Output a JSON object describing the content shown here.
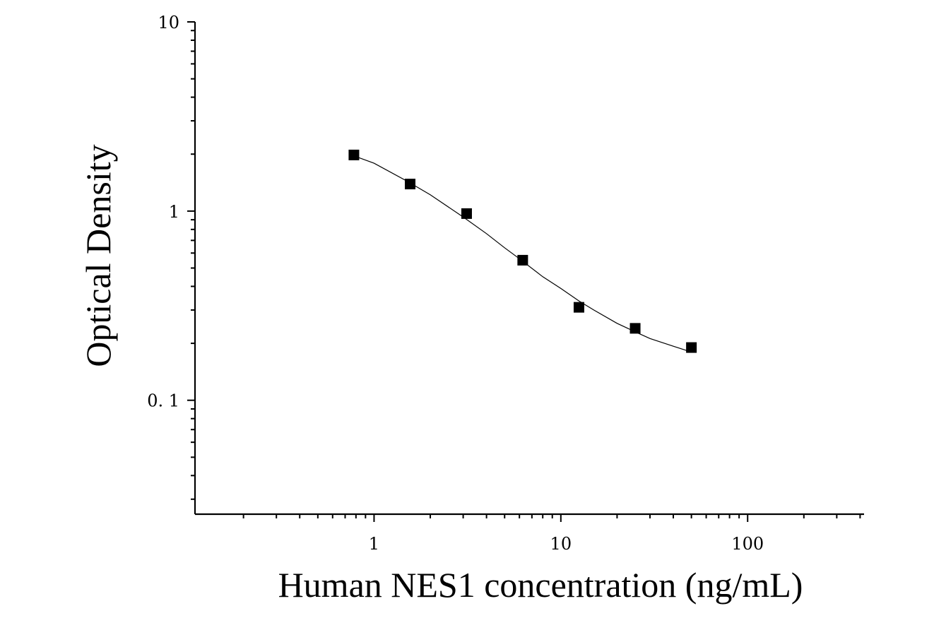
{
  "chart_data": {
    "type": "scatter",
    "title": "",
    "xlabel": "Human NES1 concentration (ng/mL)",
    "ylabel": "Optical Density",
    "x_scale": "log",
    "y_scale": "log",
    "xlim": [
      0.11,
      420
    ],
    "ylim": [
      0.025,
      10
    ],
    "x_tick_labels": [
      {
        "value": 1,
        "label": "1"
      },
      {
        "value": 10,
        "label": "10"
      },
      {
        "value": 100,
        "label": "100"
      }
    ],
    "y_tick_labels": [
      {
        "value": 0.1,
        "label": "0. 1"
      },
      {
        "value": 1,
        "label": "1"
      },
      {
        "value": 10,
        "label": "10"
      }
    ],
    "grid": false,
    "legend": "none",
    "colors": {
      "marker": "#000000",
      "curve": "#000000",
      "axis": "#000000"
    },
    "series": [
      {
        "marker": "square",
        "x": [
          0.78,
          1.56,
          3.13,
          6.25,
          12.5,
          25,
          50
        ],
        "y": [
          1.98,
          1.39,
          0.97,
          0.55,
          0.31,
          0.24,
          0.19
        ]
      }
    ],
    "fit_curve": {
      "x": [
        0.78,
        1.0,
        1.5,
        2.0,
        3.0,
        4.0,
        5.0,
        6.0,
        8.0,
        10.0,
        12.5,
        15.0,
        20.0,
        25.0,
        30.0,
        40.0,
        50.0
      ],
      "y": [
        1.96,
        1.79,
        1.44,
        1.22,
        0.93,
        0.76,
        0.64,
        0.56,
        0.45,
        0.39,
        0.335,
        0.3,
        0.255,
        0.23,
        0.212,
        0.193,
        0.18
      ]
    }
  }
}
